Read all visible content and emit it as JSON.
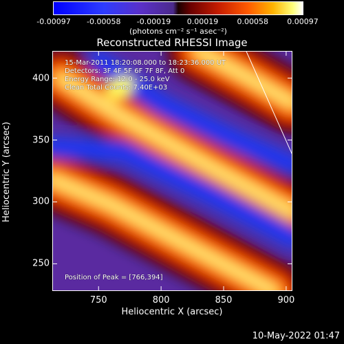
{
  "colorbar": {
    "ticks": [
      "-0.00097",
      "-0.00058",
      "-0.00019",
      "0.00019",
      "0.00058",
      "0.00097"
    ],
    "tick_values": [
      -0.00097,
      -0.00058,
      -0.00019,
      0.00019,
      0.00058,
      0.00097
    ],
    "range": [
      -0.00097,
      0.00097
    ],
    "unit": "(photons cm⁻² s⁻¹ asec⁻²)"
  },
  "annotations": {
    "time": "15-Mar-2011 18:20:08.000 to 18:23:36.000 UT",
    "detectors": "Detectors: 3F 4F 5F 6F 7F 8F, Att 0",
    "energy": "Energy Range: 12.0 - 25.0 keV",
    "clean": "Clean    Total Counts: 7.40E+03",
    "peak": "Position of Peak = [766,394]"
  },
  "footer": {
    "date": "10-May-2022 01:47"
  },
  "chart_data": {
    "type": "heatmap",
    "title": "Reconstructed RHESSI Image",
    "xlabel": "Heliocentric X (arcsec)",
    "ylabel": "Heliocentric Y (arcsec)",
    "xlim": [
      713,
      905
    ],
    "ylim": [
      228,
      422
    ],
    "xticks": [
      750,
      800,
      850,
      900
    ],
    "yticks": [
      250,
      300,
      350,
      400
    ],
    "peak": [
      766,
      394
    ],
    "colormap": "rhessi-blue-purple-black-red-yellow-white",
    "value_range": [
      -0.00097,
      0.00097
    ],
    "stripes": [
      {
        "kind": "bright",
        "points": [
          [
            720,
            400
          ],
          [
            770,
            368
          ],
          [
            840,
            328
          ],
          [
            905,
            292
          ]
        ]
      },
      {
        "kind": "bright",
        "points": [
          [
            713,
            318
          ],
          [
            760,
            298
          ],
          [
            830,
            260
          ],
          [
            890,
            228
          ]
        ]
      },
      {
        "kind": "dark",
        "points": [
          [
            713,
            345
          ],
          [
            770,
            340
          ],
          [
            840,
            305
          ],
          [
            905,
            270
          ]
        ]
      },
      {
        "kind": "dark",
        "points": [
          [
            750,
            415
          ],
          [
            800,
            380
          ],
          [
            860,
            350
          ],
          [
            905,
            330
          ]
        ]
      },
      {
        "kind": "bright",
        "points": [
          [
            830,
            422
          ],
          [
            870,
            400
          ],
          [
            905,
            380
          ]
        ]
      }
    ],
    "limb": [
      [
        868,
        422
      ],
      [
        905,
        338
      ]
    ]
  }
}
